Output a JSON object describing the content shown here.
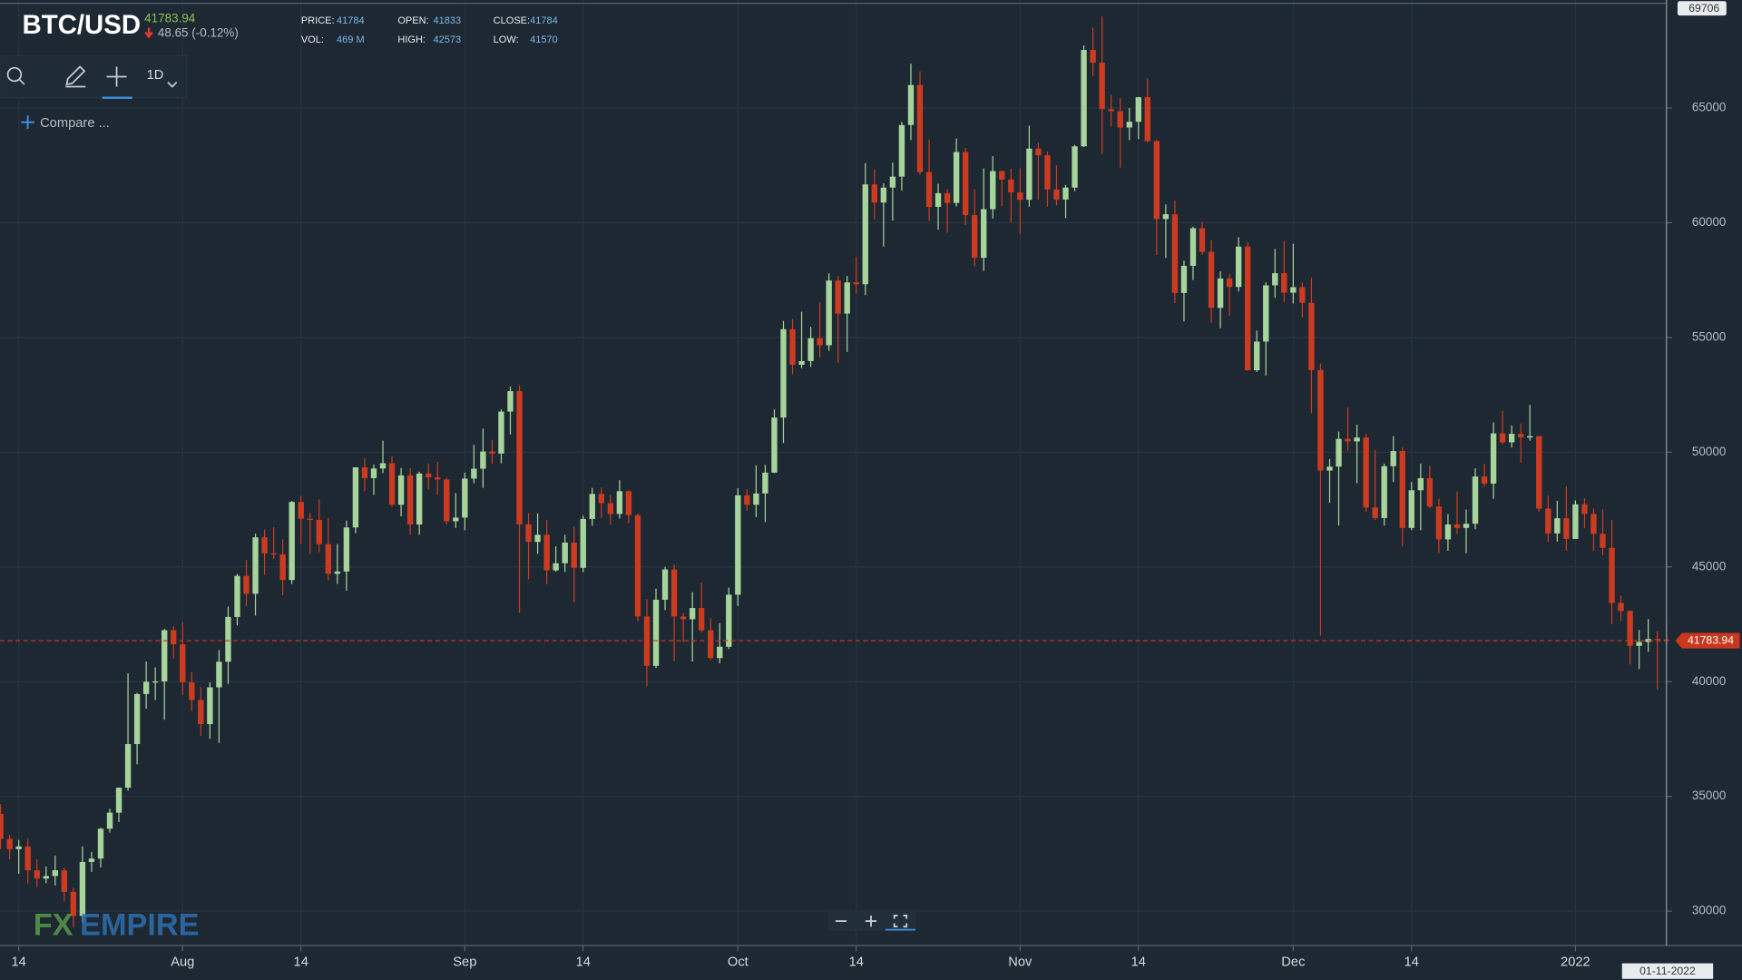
{
  "chart_data": {
    "type": "candlestick",
    "title": "BTC/USD",
    "last_price": 41783.94,
    "change": "48.65 (-0.12%)",
    "info_labels": [
      "PRICE:",
      "OPEN:",
      "CLOSE:",
      "VOL:",
      "HIGH:",
      "LOW:"
    ],
    "volume": "469 M",
    "interval": "1D",
    "compare": "Compare ...",
    "crosshair_date": "01-11-2022",
    "logo": [
      "FX",
      "EMPIRE"
    ],
    "up_color": "#a6d49b",
    "down_color": "#cc3b1f",
    "grid": true,
    "ylim": [
      28500,
      69706
    ],
    "yticks": [
      30000,
      35000,
      40000,
      45000,
      50000,
      55000,
      60000,
      65000
    ],
    "categories": [
      null,
      null,
      "14",
      null,
      null,
      null,
      null,
      null,
      null,
      null,
      null,
      null,
      null,
      null,
      null,
      null,
      null,
      null,
      null,
      null,
      "Aug",
      null,
      null,
      null,
      null,
      null,
      null,
      null,
      null,
      null,
      null,
      null,
      null,
      "14",
      null,
      null,
      null,
      null,
      null,
      null,
      null,
      null,
      null,
      null,
      null,
      null,
      null,
      null,
      null,
      null,
      null,
      "Sep",
      null,
      null,
      null,
      null,
      null,
      null,
      null,
      null,
      null,
      null,
      null,
      null,
      "14",
      null,
      null,
      null,
      null,
      null,
      null,
      null,
      null,
      null,
      null,
      null,
      null,
      null,
      null,
      null,
      null,
      "Oct",
      null,
      null,
      null,
      null,
      null,
      null,
      null,
      null,
      null,
      null,
      null,
      null,
      "14",
      null,
      null,
      null,
      null,
      null,
      null,
      null,
      null,
      null,
      null,
      null,
      null,
      null,
      null,
      null,
      null,
      null,
      "Nov",
      null,
      null,
      null,
      null,
      null,
      null,
      null,
      null,
      null,
      null,
      null,
      null,
      "14",
      null,
      null,
      null,
      null,
      null,
      null,
      null,
      null,
      null,
      null,
      null,
      null,
      null,
      null,
      null,
      null,
      "Dec",
      null,
      null,
      null,
      null,
      null,
      null,
      null,
      null,
      null,
      null,
      null,
      null,
      "14",
      null,
      null,
      null,
      null,
      null,
      null,
      null,
      null,
      null,
      null,
      null,
      null,
      null,
      null,
      null,
      null,
      null,
      "2022",
      null,
      null,
      null,
      null,
      null,
      null,
      null,
      null,
      null,
      null
    ],
    "ohlc": [
      [
        34240,
        34660,
        32700,
        33150
      ],
      [
        33150,
        33330,
        32250,
        32700
      ],
      [
        32700,
        33100,
        31630,
        32820
      ],
      [
        32820,
        33170,
        31200,
        31780
      ],
      [
        31780,
        32250,
        31050,
        31420
      ],
      [
        31420,
        31950,
        31220,
        31530
      ],
      [
        31530,
        32420,
        31120,
        31780
      ],
      [
        31780,
        31900,
        30420,
        30840
      ],
      [
        30840,
        31030,
        29280,
        29790
      ],
      [
        29790,
        32820,
        29500,
        32140
      ],
      [
        32140,
        32580,
        31710,
        32290
      ],
      [
        32290,
        33630,
        31900,
        33590
      ],
      [
        33590,
        34460,
        33420,
        34290
      ],
      [
        34290,
        35390,
        33880,
        35380
      ],
      [
        35380,
        40370,
        35250,
        37280
      ],
      [
        37280,
        39510,
        36400,
        39460
      ],
      [
        39460,
        40880,
        38820,
        40000
      ],
      [
        40000,
        40620,
        39200,
        40010
      ],
      [
        40010,
        42300,
        38340,
        42240
      ],
      [
        42240,
        42410,
        41010,
        41630
      ],
      [
        41630,
        42600,
        39420,
        39970
      ],
      [
        39970,
        40420,
        38710,
        39200
      ],
      [
        39200,
        39760,
        37640,
        38150
      ],
      [
        38150,
        39970,
        37510,
        39750
      ],
      [
        39750,
        41380,
        37330,
        40870
      ],
      [
        40870,
        43270,
        39900,
        42820
      ],
      [
        42820,
        44690,
        42450,
        44610
      ],
      [
        44610,
        45300,
        43280,
        43830
      ],
      [
        43830,
        46450,
        42880,
        46290
      ],
      [
        46290,
        46630,
        44660,
        45590
      ],
      [
        45590,
        46730,
        45350,
        45550
      ],
      [
        45550,
        46200,
        43770,
        44430
      ],
      [
        44430,
        47880,
        44250,
        47830
      ],
      [
        47830,
        48100,
        46000,
        47100
      ],
      [
        47100,
        47340,
        45570,
        47050
      ],
      [
        47050,
        47950,
        45640,
        45990
      ],
      [
        45990,
        47130,
        44410,
        44700
      ],
      [
        44700,
        46000,
        44260,
        44800
      ],
      [
        44800,
        47020,
        43960,
        46720
      ],
      [
        46720,
        49340,
        46470,
        49340
      ],
      [
        49340,
        49730,
        48300,
        48870
      ],
      [
        48870,
        49460,
        48140,
        49290
      ],
      [
        49290,
        50500,
        49090,
        49520
      ],
      [
        49520,
        49820,
        47620,
        47710
      ],
      [
        47710,
        49310,
        47210,
        48990
      ],
      [
        48990,
        49300,
        46410,
        46850
      ],
      [
        46850,
        49150,
        46400,
        49070
      ],
      [
        49070,
        49510,
        48380,
        48900
      ],
      [
        48900,
        49580,
        48150,
        48810
      ],
      [
        48810,
        48880,
        46860,
        46990
      ],
      [
        46990,
        48220,
        46700,
        47150
      ],
      [
        47150,
        49110,
        46600,
        48850
      ],
      [
        48850,
        50320,
        48650,
        49280
      ],
      [
        49280,
        51030,
        48440,
        50030
      ],
      [
        50030,
        50540,
        49500,
        49940
      ],
      [
        49940,
        51870,
        49510,
        51770
      ],
      [
        51770,
        52860,
        50770,
        52660
      ],
      [
        52660,
        52920,
        43000,
        46860
      ],
      [
        46860,
        47350,
        44460,
        46090
      ],
      [
        46090,
        47330,
        45570,
        46400
      ],
      [
        46400,
        47040,
        44250,
        44850
      ],
      [
        44850,
        45900,
        44790,
        45160
      ],
      [
        45160,
        46400,
        44780,
        46060
      ],
      [
        46060,
        46760,
        43460,
        44960
      ],
      [
        44960,
        47240,
        44770,
        47090
      ],
      [
        47090,
        48450,
        46790,
        48180
      ],
      [
        48180,
        48460,
        47140,
        47780
      ],
      [
        47780,
        48140,
        46850,
        47310
      ],
      [
        47310,
        48780,
        47110,
        48300
      ],
      [
        48300,
        48330,
        46900,
        47260
      ],
      [
        47260,
        47320,
        42630,
        42840
      ],
      [
        42840,
        43600,
        39800,
        40690
      ],
      [
        40690,
        44060,
        40600,
        43570
      ],
      [
        43570,
        45000,
        43120,
        44890
      ],
      [
        44890,
        45100,
        40900,
        42840
      ],
      [
        42840,
        42990,
        41720,
        42720
      ],
      [
        42720,
        43900,
        40880,
        43210
      ],
      [
        43210,
        44320,
        42150,
        42240
      ],
      [
        42240,
        42760,
        40950,
        41030
      ],
      [
        41030,
        42550,
        40800,
        41520
      ],
      [
        41520,
        44100,
        41420,
        43790
      ],
      [
        43790,
        48430,
        43300,
        48120
      ],
      [
        48120,
        48380,
        47450,
        47710
      ],
      [
        47710,
        49430,
        47170,
        48200
      ],
      [
        48200,
        49450,
        46960,
        49110
      ],
      [
        49110,
        51860,
        49090,
        51510
      ],
      [
        51510,
        55720,
        50400,
        55360
      ],
      [
        55360,
        55800,
        53400,
        53810
      ],
      [
        53810,
        56120,
        53660,
        53970
      ],
      [
        53970,
        55460,
        53720,
        54970
      ],
      [
        54970,
        56530,
        54130,
        54660
      ],
      [
        54660,
        57790,
        54420,
        57480
      ],
      [
        57480,
        57680,
        53900,
        56040
      ],
      [
        56040,
        57680,
        54370,
        57400
      ],
      [
        57400,
        58500,
        56900,
        57320
      ],
      [
        57320,
        62600,
        56850,
        61670
      ],
      [
        61670,
        62320,
        60150,
        60880
      ],
      [
        60880,
        61720,
        58960,
        61530
      ],
      [
        61530,
        62620,
        60100,
        62010
      ],
      [
        62010,
        64400,
        61400,
        64260
      ],
      [
        64260,
        66930,
        63600,
        66000
      ],
      [
        66000,
        66600,
        62100,
        62210
      ],
      [
        62210,
        63620,
        60080,
        60690
      ],
      [
        60690,
        61700,
        59700,
        61290
      ],
      [
        61290,
        61450,
        59570,
        60860
      ],
      [
        60860,
        63670,
        60700,
        63080
      ],
      [
        63080,
        63260,
        59900,
        60330
      ],
      [
        60330,
        61460,
        58100,
        58470
      ],
      [
        58470,
        62370,
        57900,
        60590
      ],
      [
        60590,
        62900,
        60180,
        62250
      ],
      [
        62250,
        62270,
        60730,
        61880
      ],
      [
        61880,
        62350,
        60010,
        61320
      ],
      [
        61320,
        62370,
        59500,
        61000
      ],
      [
        61000,
        64230,
        60700,
        63230
      ],
      [
        63230,
        63480,
        61000,
        62940
      ],
      [
        62940,
        63100,
        60700,
        61450
      ],
      [
        61450,
        62500,
        60750,
        61010
      ],
      [
        61010,
        61650,
        60200,
        61530
      ],
      [
        61530,
        63390,
        61370,
        63330
      ],
      [
        63330,
        67730,
        63300,
        67530
      ],
      [
        67530,
        68500,
        66400,
        66970
      ],
      [
        66970,
        69000,
        63000,
        64950
      ],
      [
        64950,
        65580,
        64200,
        64860
      ],
      [
        64860,
        65440,
        62400,
        64150
      ],
      [
        64150,
        65000,
        63600,
        64400
      ],
      [
        64400,
        65480,
        63650,
        65470
      ],
      [
        65470,
        66290,
        63500,
        63560
      ],
      [
        63560,
        63600,
        58600,
        60160
      ],
      [
        60160,
        60800,
        58470,
        60370
      ],
      [
        60370,
        60960,
        56500,
        56940
      ],
      [
        56940,
        58350,
        55700,
        58120
      ],
      [
        58120,
        59830,
        57500,
        59760
      ],
      [
        59760,
        60040,
        58600,
        58730
      ],
      [
        58730,
        59240,
        55650,
        56290
      ],
      [
        56290,
        57880,
        55400,
        57570
      ],
      [
        57570,
        57760,
        55950,
        57200
      ],
      [
        57200,
        59370,
        57000,
        58960
      ],
      [
        58960,
        59150,
        53550,
        53570
      ],
      [
        53570,
        55300,
        53500,
        54820
      ],
      [
        54820,
        57400,
        53340,
        57270
      ],
      [
        57270,
        58860,
        56730,
        57800
      ],
      [
        57800,
        59200,
        56550,
        56950
      ],
      [
        56950,
        59080,
        56480,
        57190
      ],
      [
        57190,
        57400,
        55870,
        56510
      ],
      [
        56510,
        57600,
        51700,
        53580
      ],
      [
        53580,
        53860,
        42000,
        49200
      ],
      [
        49200,
        49700,
        47800,
        49370
      ],
      [
        49370,
        50900,
        46800,
        50580
      ],
      [
        50580,
        51950,
        50070,
        50470
      ],
      [
        50470,
        51200,
        48650,
        50640
      ],
      [
        50640,
        50800,
        47400,
        47590
      ],
      [
        47590,
        50100,
        47050,
        47130
      ],
      [
        47130,
        49500,
        46800,
        49390
      ],
      [
        49390,
        50700,
        48700,
        50050
      ],
      [
        50050,
        50200,
        45900,
        46700
      ],
      [
        46700,
        48700,
        46600,
        48340
      ],
      [
        48340,
        49500,
        46600,
        48870
      ],
      [
        48870,
        49400,
        47560,
        47630
      ],
      [
        47630,
        47980,
        45600,
        46200
      ],
      [
        46200,
        47300,
        45700,
        46850
      ],
      [
        46850,
        48280,
        46450,
        46700
      ],
      [
        46700,
        47500,
        45600,
        46880
      ],
      [
        46880,
        49300,
        46640,
        48940
      ],
      [
        48940,
        49500,
        48500,
        48630
      ],
      [
        48630,
        51300,
        47970,
        50820
      ],
      [
        50820,
        51800,
        50350,
        50430
      ],
      [
        50430,
        51160,
        50200,
        50800
      ],
      [
        50800,
        51250,
        49550,
        50640
      ],
      [
        50640,
        52060,
        50500,
        50700
      ],
      [
        50700,
        50700,
        47400,
        47540
      ],
      [
        47540,
        48120,
        46100,
        46460
      ],
      [
        46460,
        47880,
        46100,
        47120
      ],
      [
        47120,
        48500,
        45700,
        46220
      ],
      [
        46220,
        47900,
        46220,
        47730
      ],
      [
        47730,
        47990,
        46700,
        47310
      ],
      [
        47310,
        47550,
        45700,
        46440
      ],
      [
        46440,
        47500,
        45500,
        45830
      ],
      [
        45830,
        47050,
        42500,
        43430
      ],
      [
        43430,
        43750,
        42650,
        43080
      ],
      [
        43080,
        43120,
        40750,
        41560
      ],
      [
        41560,
        42250,
        40550,
        41730
      ],
      [
        41730,
        42730,
        41300,
        41860
      ],
      [
        41860,
        42200,
        39650,
        41830
      ],
      [
        41833,
        42573,
        41570,
        41784
      ]
    ]
  }
}
